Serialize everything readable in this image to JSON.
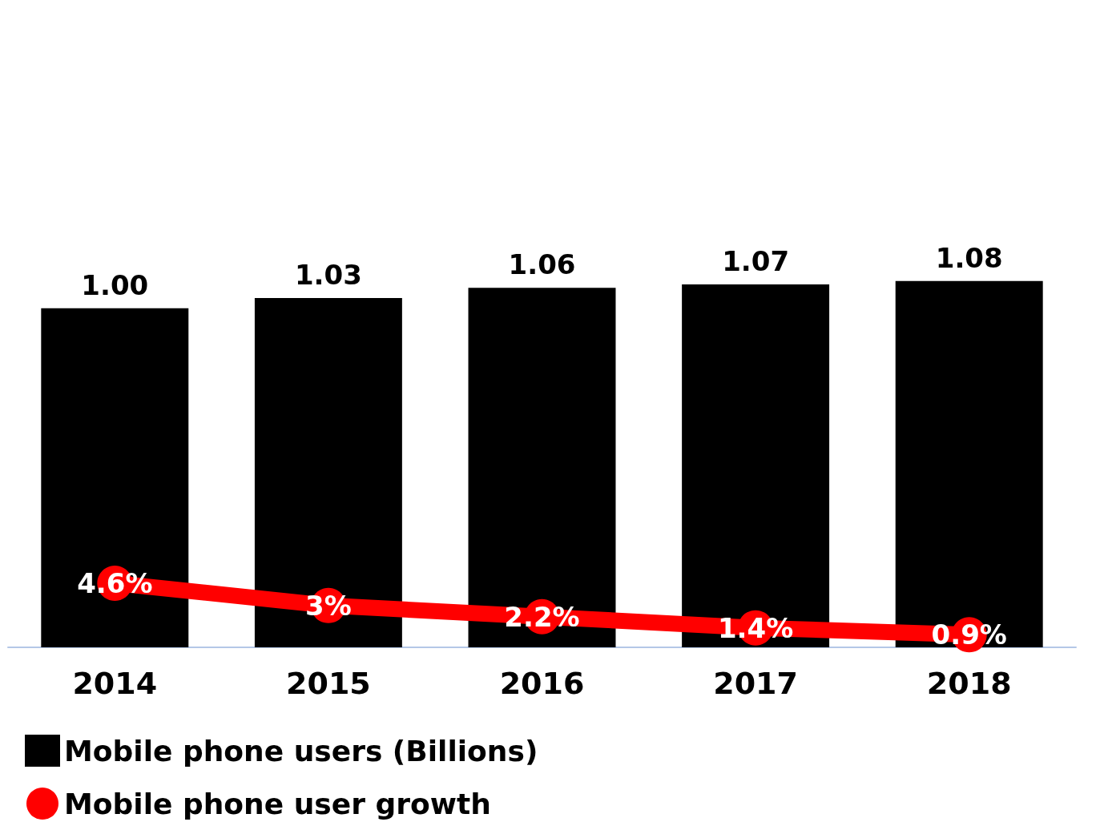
{
  "chart_data": {
    "type": "bar",
    "categories": [
      "2014",
      "2015",
      "2016",
      "2017",
      "2018"
    ],
    "series": [
      {
        "name": "Mobile phone users (Billions)",
        "color": "#000000",
        "values": [
          1.0,
          1.03,
          1.06,
          1.07,
          1.08
        ],
        "value_labels": [
          "1.00",
          "1.03",
          "1.06",
          "1.07",
          "1.08"
        ]
      },
      {
        "name": "Mobile phone user growth",
        "type": "line",
        "axis": "y2",
        "color": "#ff0000",
        "values": [
          4.6,
          3,
          2.2,
          1.4,
          0.9
        ],
        "value_labels": [
          "4.6%",
          "3%",
          "2.2%",
          "1.4%",
          "0.9%"
        ]
      }
    ],
    "legend": "bottom left",
    "marker": "circle"
  }
}
